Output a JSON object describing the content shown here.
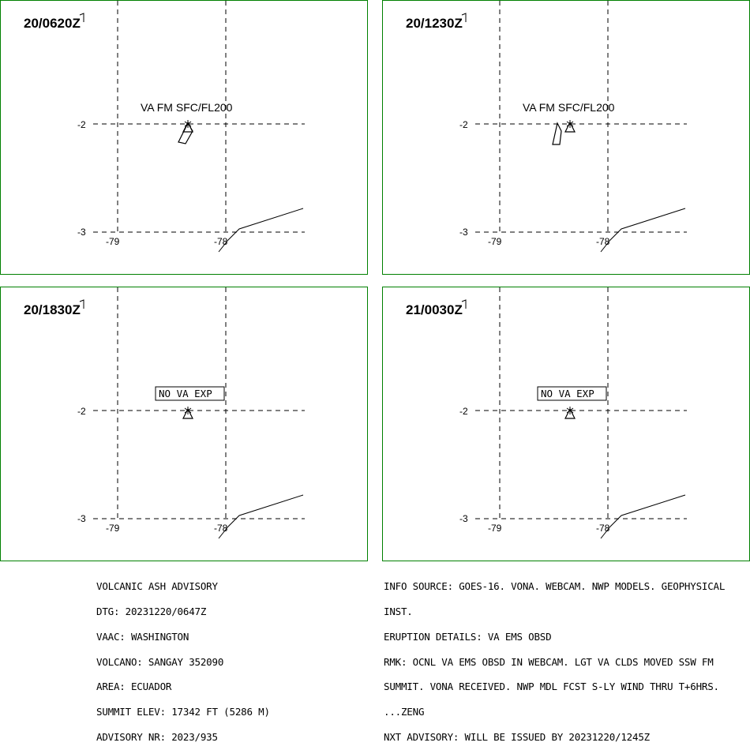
{
  "colors": {
    "frame": "#008000",
    "ink": "#000000",
    "background": "#ffffff"
  },
  "panels": [
    {
      "time": "20/0620Z",
      "label": "VA FM SFC/FL200",
      "label_boxed": false,
      "cloud": "plume"
    },
    {
      "time": "20/1230Z",
      "label": "VA FM SFC/FL200",
      "label_boxed": false,
      "cloud": "plume-short"
    },
    {
      "time": "20/1830Z",
      "label": "NO VA EXP",
      "label_boxed": true,
      "cloud": "none"
    },
    {
      "time": "21/0030Z",
      "label": "NO VA EXP",
      "label_boxed": true,
      "cloud": "none"
    }
  ],
  "map": {
    "lat_labels": [
      "-2",
      "-3"
    ],
    "lon_labels": [
      "-79",
      "-78"
    ],
    "volcano_marker_icon": "volcano-triangle-icon",
    "coastline": "ecuador-coast"
  },
  "advisory_left": [
    "VOLCANIC ASH ADVISORY",
    "DTG: 20231220/0647Z",
    "VAAC: WASHINGTON",
    "VOLCANO: SANGAY 352090",
    "AREA: ECUADOR",
    "SUMMIT ELEV: 17342 FT (5286 M)",
    "ADVISORY NR: 2023/935"
  ],
  "advisory_right": [
    "INFO SOURCE: GOES-16. VONA. WEBCAM. NWP MODELS. GEOPHYSICAL",
    "INST.",
    "ERUPTION DETAILS: VA EMS OBSD",
    "RMK: OCNL VA EMS OBSD IN WEBCAM. LGT VA CLDS MOVED SSW FM",
    "SUMMIT. VONA RECEIVED. NWP MDL FCST S-LY WIND THRU T+6HRS.",
    "...ZENG",
    "NXT ADVISORY: WILL BE ISSUED BY 20231220/1245Z"
  ]
}
